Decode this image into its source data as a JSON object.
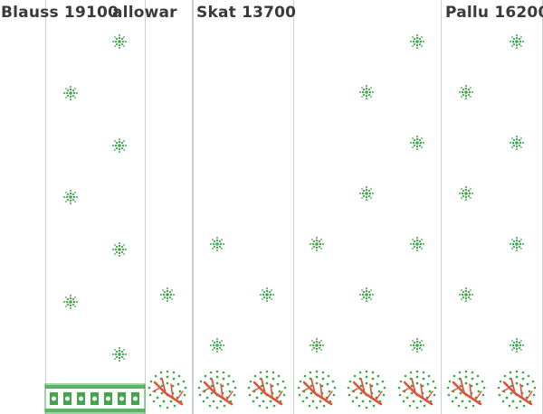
{
  "labels": {
    "blouse": "Blauss  19100",
    "salwar": "allowar",
    "skirt": "Skat  13700",
    "pallu": "Pallu  16200"
  },
  "colors": {
    "flower": "#3fa64a",
    "tree_foliage": "#3fa64a",
    "tree_branch": "#e0523a",
    "border_band": "#3fa64a",
    "panel_line": "#cfcfcf",
    "label_text": "#3a3a3a"
  },
  "icons": {
    "flower": "snowflake-flower-icon",
    "tree": "round-tree-icon",
    "border": "woven-border-band"
  }
}
